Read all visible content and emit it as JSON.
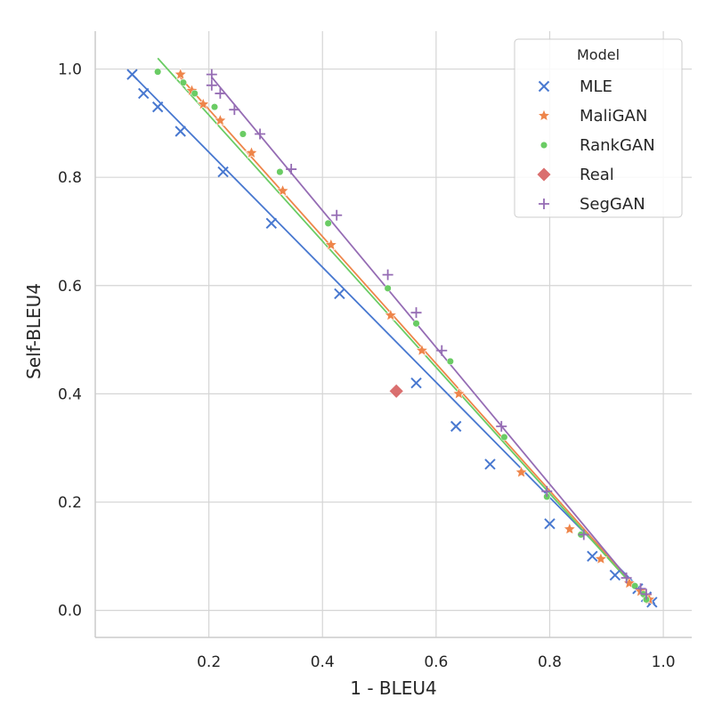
{
  "chart_data": {
    "type": "scatter",
    "xlabel": "1 - BLEU4",
    "ylabel": "Self-BLEU4",
    "xlim": [
      0.0,
      1.05
    ],
    "ylim": [
      -0.05,
      1.07
    ],
    "xticks": [
      0.2,
      0.4,
      0.6,
      0.8,
      1.0
    ],
    "xtick_labels": [
      "0.2",
      "0.4",
      "0.6",
      "0.8",
      "1.0"
    ],
    "yticks": [
      0.0,
      0.2,
      0.4,
      0.6,
      0.8,
      1.0
    ],
    "ytick_labels": [
      "0.0",
      "0.2",
      "0.4",
      "0.6",
      "0.8",
      "1.0"
    ],
    "grid": true,
    "legend": {
      "title": "Model",
      "placement": "top-right"
    },
    "series": [
      {
        "name": "MLE",
        "marker": "x",
        "color": "#4878d0",
        "x": [
          0.065,
          0.085,
          0.11,
          0.15,
          0.225,
          0.31,
          0.43,
          0.565,
          0.635,
          0.695,
          0.8,
          0.875,
          0.915,
          0.955,
          0.97,
          0.98
        ],
        "y": [
          0.99,
          0.955,
          0.93,
          0.885,
          0.81,
          0.715,
          0.585,
          0.42,
          0.34,
          0.27,
          0.16,
          0.1,
          0.065,
          0.04,
          0.025,
          0.015
        ],
        "fit": [
          [
            0.065,
            0.99
          ],
          [
            0.985,
            0.012
          ]
        ]
      },
      {
        "name": "MaliGAN",
        "marker": "star",
        "color": "#ee854a",
        "x": [
          0.15,
          0.17,
          0.19,
          0.22,
          0.275,
          0.33,
          0.415,
          0.52,
          0.575,
          0.64,
          0.75,
          0.835,
          0.89,
          0.94,
          0.96,
          0.97,
          0.975
        ],
        "y": [
          0.99,
          0.96,
          0.935,
          0.905,
          0.845,
          0.775,
          0.675,
          0.545,
          0.48,
          0.4,
          0.255,
          0.15,
          0.095,
          0.05,
          0.035,
          0.025,
          0.02
        ],
        "fit": [
          [
            0.145,
            0.99
          ],
          [
            0.978,
            0.012
          ]
        ]
      },
      {
        "name": "RankGAN",
        "marker": "circle",
        "color": "#6acc64",
        "x": [
          0.11,
          0.155,
          0.175,
          0.21,
          0.26,
          0.325,
          0.41,
          0.515,
          0.565,
          0.625,
          0.72,
          0.795,
          0.855,
          0.95,
          0.965,
          0.97
        ],
        "y": [
          0.995,
          0.975,
          0.955,
          0.93,
          0.88,
          0.81,
          0.715,
          0.595,
          0.53,
          0.46,
          0.32,
          0.21,
          0.14,
          0.045,
          0.03,
          0.02
        ],
        "fit": [
          [
            0.11,
            1.02
          ],
          [
            0.975,
            0.012
          ]
        ]
      },
      {
        "name": "Real",
        "marker": "diamond",
        "color": "#d65f5f",
        "x": [
          0.53
        ],
        "y": [
          0.405
        ]
      },
      {
        "name": "SegGAN",
        "marker": "plus",
        "color": "#956cb4",
        "x": [
          0.205,
          0.205,
          0.22,
          0.245,
          0.29,
          0.345,
          0.425,
          0.515,
          0.565,
          0.61,
          0.715,
          0.795,
          0.86,
          0.935,
          0.96,
          0.97
        ],
        "y": [
          0.99,
          0.97,
          0.955,
          0.925,
          0.88,
          0.815,
          0.73,
          0.62,
          0.55,
          0.48,
          0.34,
          0.22,
          0.14,
          0.06,
          0.04,
          0.03
        ],
        "fit": [
          [
            0.205,
            0.985
          ],
          [
            0.975,
            0.012
          ]
        ]
      }
    ]
  }
}
